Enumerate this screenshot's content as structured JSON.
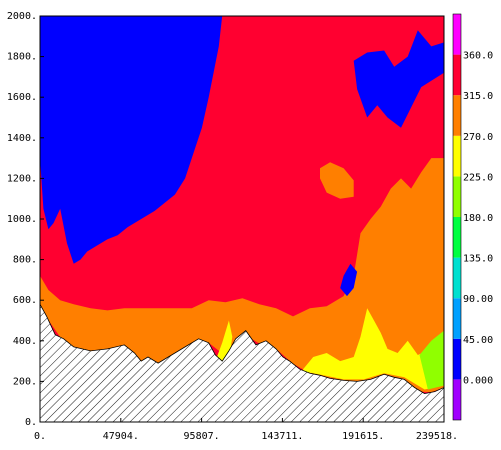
{
  "chart_data": {
    "type": "heatmap",
    "title": "",
    "xlabel": "",
    "ylabel": "",
    "xlim": [
      0,
      239518
    ],
    "ylim": [
      0,
      2000
    ],
    "x_ticks": [
      {
        "value": 0,
        "label": "0."
      },
      {
        "value": 47904,
        "label": "47904."
      },
      {
        "value": 95807,
        "label": "95807."
      },
      {
        "value": 143711,
        "label": "143711."
      },
      {
        "value": 191615,
        "label": "191615."
      },
      {
        "value": 239518,
        "label": "239518."
      }
    ],
    "y_ticks": [
      {
        "value": 0,
        "label": "0."
      },
      {
        "value": 200,
        "label": "200."
      },
      {
        "value": 400,
        "label": "400."
      },
      {
        "value": 600,
        "label": "600."
      },
      {
        "value": 800,
        "label": "800."
      },
      {
        "value": 1000,
        "label": "1000."
      },
      {
        "value": 1200,
        "label": "1200."
      },
      {
        "value": 1400,
        "label": "1400."
      },
      {
        "value": 1600,
        "label": "1600."
      },
      {
        "value": 1800,
        "label": "1800."
      },
      {
        "value": 2000,
        "label": "2000."
      }
    ],
    "colorbar": {
      "levels": [
        {
          "label": "0.000",
          "color": "#0000ff"
        },
        {
          "label": "45.00",
          "color": "#00a0ff"
        },
        {
          "label": "90.00",
          "color": "#00e0d0"
        },
        {
          "label": "135.0",
          "color": "#00ff40"
        },
        {
          "label": "180.0",
          "color": "#90ff00"
        },
        {
          "label": "225.0",
          "color": "#ffff00"
        },
        {
          "label": "270.0",
          "color": "#ff7f00"
        },
        {
          "label": "315.0",
          "color": "#ff0030"
        },
        {
          "label": "360.0",
          "color": "#ff00ff"
        }
      ],
      "bottom_color": "#a000ff",
      "top_color": "#ff00ff"
    },
    "terrain": {
      "x": [
        0,
        4000,
        9000,
        14000,
        20000,
        30000,
        40000,
        50000,
        56000,
        60000,
        64000,
        70000,
        78000,
        86000,
        94000,
        100000,
        104000,
        108000,
        112000,
        116000,
        122000,
        128000,
        134000,
        140000,
        144000,
        148000,
        154000,
        160000,
        166000,
        172000,
        180000,
        188000,
        196000,
        204000,
        210000,
        216000,
        222000,
        228000,
        234000,
        239518
      ],
      "elevation": [
        580,
        520,
        430,
        410,
        370,
        350,
        360,
        380,
        340,
        300,
        320,
        290,
        330,
        370,
        410,
        390,
        330,
        300,
        350,
        410,
        450,
        380,
        400,
        360,
        320,
        300,
        260,
        240,
        230,
        215,
        205,
        200,
        210,
        235,
        220,
        210,
        170,
        140,
        150,
        170
      ]
    },
    "fields": [
      {
        "name": "red",
        "color": "#ff0030",
        "x": [
          0,
          239518
        ],
        "top": [
          2000,
          2000
        ],
        "bottom_rel": "terrain"
      },
      {
        "name": "orange",
        "color": "#ff7f00",
        "x": [
          0,
          5000,
          12000,
          20000,
          30000,
          40000,
          50000,
          60000,
          70000,
          80000,
          90000,
          100000,
          110000,
          120000,
          130000,
          140000,
          150000,
          160000,
          170000,
          180000,
          186000,
          190000,
          196000,
          202000,
          208000,
          214000,
          220000,
          226000,
          232000,
          239518
        ],
        "top": [
          720,
          650,
          600,
          580,
          560,
          550,
          560,
          560,
          560,
          560,
          560,
          600,
          590,
          610,
          580,
          560,
          520,
          560,
          570,
          620,
          720,
          930,
          1000,
          1060,
          1150,
          1200,
          1150,
          1230,
          1300,
          1300
        ]
      },
      {
        "name": "orange-blob",
        "color": "#ff7f00",
        "poly_x": [
          166000,
          172000,
          180000,
          186000,
          186000,
          178000,
          170000,
          166000
        ],
        "poly_y": [
          1250,
          1280,
          1250,
          1190,
          1110,
          1100,
          1130,
          1200
        ]
      },
      {
        "name": "yellow",
        "color": "#ffff00",
        "poly_x": [
          104000,
          108000,
          112000,
          114000,
          112000,
          108000,
          104000
        ],
        "poly_y": [
          300,
          390,
          500,
          420,
          300,
          260,
          260
        ]
      },
      {
        "name": "yellow-2",
        "color": "#ffff00",
        "poly_x": [
          156000,
          162000,
          170000,
          178000,
          186000,
          190000,
          194000,
          198000,
          202000,
          206000,
          212000,
          218000,
          224000,
          232000,
          239518,
          239518,
          228000,
          216000,
          204000,
          192000,
          180000,
          168000,
          156000
        ],
        "poly_y": [
          260,
          320,
          340,
          300,
          320,
          420,
          560,
          500,
          440,
          360,
          340,
          400,
          330,
          360,
          420,
          180,
          160,
          220,
          240,
          210,
          210,
          230,
          250
        ]
      },
      {
        "name": "green",
        "color": "#90ff00",
        "poly_x": [
          225000,
          232000,
          239518,
          239518,
          230000
        ],
        "poly_y": [
          330,
          400,
          450,
          180,
          160
        ]
      },
      {
        "name": "blue-main",
        "color": "#0000ff",
        "poly_x": [
          0,
          108000,
          106000,
          100000,
          96000,
          90000,
          86000,
          80000,
          74000,
          68000,
          60000,
          52000,
          46000,
          40000,
          34000,
          28000,
          24000,
          20000,
          16000,
          12000,
          8000,
          5000,
          2000,
          0
        ],
        "poly_y": [
          2000,
          2000,
          1850,
          1600,
          1450,
          1300,
          1200,
          1120,
          1080,
          1040,
          1000,
          960,
          920,
          900,
          870,
          840,
          800,
          780,
          880,
          1050,
          980,
          950,
          1050,
          1300
        ]
      },
      {
        "name": "blue-right",
        "color": "#0000ff",
        "poly_x": [
          186000,
          194000,
          204000,
          210000,
          218000,
          224000,
          232000,
          239518,
          239518,
          226000,
          214000,
          206000,
          200000,
          194000,
          188000
        ],
        "poly_y": [
          1780,
          1820,
          1830,
          1750,
          1800,
          1930,
          1850,
          1870,
          1720,
          1650,
          1450,
          1500,
          1560,
          1500,
          1640
        ]
      },
      {
        "name": "blue-blob",
        "color": "#0000ff",
        "poly_x": [
          180000,
          184000,
          188000,
          186000,
          182000,
          178000
        ],
        "poly_y": [
          720,
          780,
          740,
          660,
          620,
          660
        ]
      }
    ]
  }
}
